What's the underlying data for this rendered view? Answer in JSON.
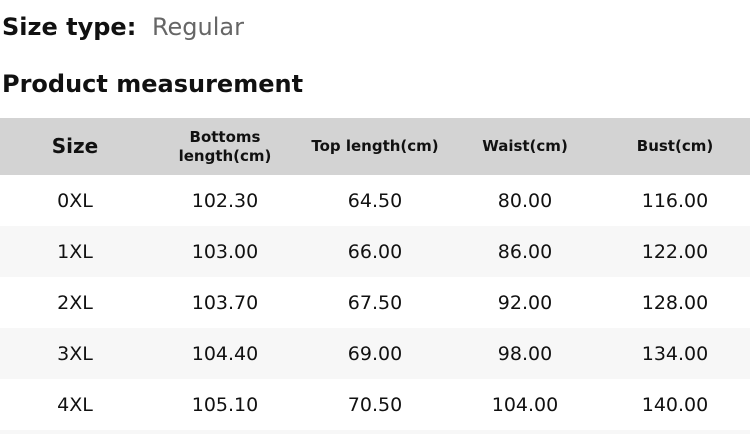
{
  "page": {
    "size_type_label": "Size type:",
    "size_type_value": "Regular",
    "section_title": "Product measurement"
  },
  "colors": {
    "header_row_bg": "#d3d3d3",
    "alt_row_bg": "#f7f7f7",
    "text": "#111111",
    "muted_text": "#666666"
  },
  "table": {
    "columns": [
      "Size",
      "Bottoms length(cm)",
      "Top length(cm)",
      "Waist(cm)",
      "Bust(cm)"
    ],
    "rows": [
      {
        "cells": [
          "0XL",
          "102.30",
          "64.50",
          "80.00",
          "116.00"
        ]
      },
      {
        "cells": [
          "1XL",
          "103.00",
          "66.00",
          "86.00",
          "122.00"
        ]
      },
      {
        "cells": [
          "2XL",
          "103.70",
          "67.50",
          "92.00",
          "128.00"
        ]
      },
      {
        "cells": [
          "3XL",
          "104.40",
          "69.00",
          "98.00",
          "134.00"
        ]
      },
      {
        "cells": [
          "4XL",
          "105.10",
          "70.50",
          "104.00",
          "140.00"
        ]
      }
    ]
  }
}
